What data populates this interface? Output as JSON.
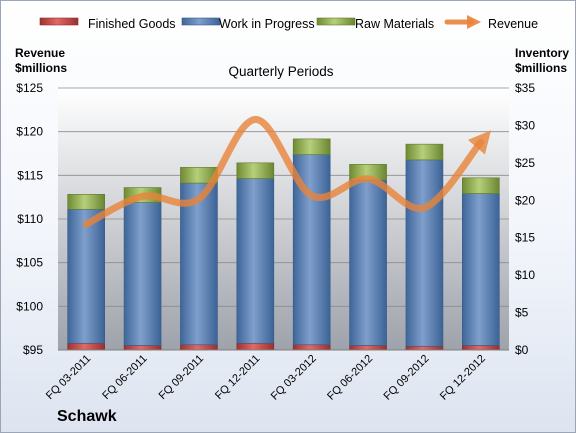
{
  "company": "Schawk",
  "chart_data": {
    "type": "bar",
    "title": "Quarterly Periods",
    "left_axis_label": [
      "Revenue",
      "$millions"
    ],
    "right_axis_label": [
      "Inventory",
      "$millions"
    ],
    "categories": [
      "FQ 03-2011",
      "FQ 06-2011",
      "FQ 09-2011",
      "FQ 12-2011",
      "FQ 03-2012",
      "FQ 06-2012",
      "FQ 09-2012",
      "FQ 12-2012"
    ],
    "left_ylim": [
      95,
      125
    ],
    "left_ticks": [
      95,
      100,
      105,
      110,
      115,
      120,
      125
    ],
    "left_tick_labels": [
      "$95",
      "$100",
      "$105",
      "$110",
      "$115",
      "$120",
      "$125"
    ],
    "right_ylim": [
      0,
      35
    ],
    "right_ticks": [
      0,
      5,
      10,
      15,
      20,
      25,
      30,
      35
    ],
    "right_tick_labels": [
      "$0",
      "$5",
      "$10",
      "$15",
      "$20",
      "$25",
      "$30",
      "$35"
    ],
    "legend_position": "top",
    "grid": true,
    "series": [
      {
        "name": "Finished Goods",
        "axis": "right",
        "stacked": true,
        "color": "#c0504d",
        "values": [
          0.9,
          0.6,
          0.7,
          0.9,
          0.7,
          0.6,
          0.5,
          0.6
        ]
      },
      {
        "name": "Work in Progress",
        "axis": "right",
        "stacked": true,
        "color": "#4f81bd",
        "values": [
          17.9,
          19.1,
          21.6,
          22.0,
          25.4,
          22.1,
          24.9,
          20.3
        ]
      },
      {
        "name": "Raw Materials",
        "axis": "right",
        "stacked": true,
        "color": "#9bbb59",
        "values": [
          2.0,
          2.0,
          2.1,
          2.1,
          2.1,
          2.1,
          2.1,
          2.1
        ]
      },
      {
        "name": "Revenue",
        "axis": "left",
        "type": "line",
        "color": "#e8833a",
        "values": [
          109.4,
          112.6,
          112.3,
          121.4,
          112.7,
          114.6,
          111.3,
          118.8
        ]
      }
    ]
  }
}
